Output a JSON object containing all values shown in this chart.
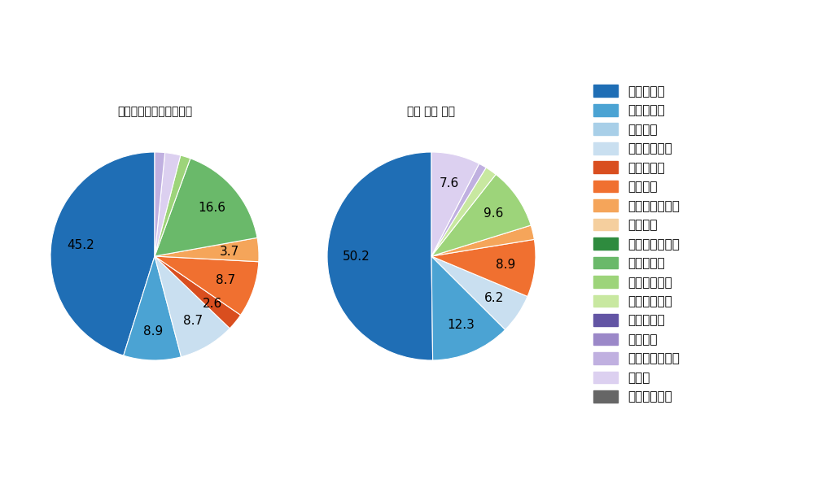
{
  "left_title": "パ・リーグ全プレイヤー",
  "right_title": "角中 勝也 選手",
  "legend_labels": [
    "ストレート",
    "ツーシーム",
    "シュート",
    "カットボール",
    "スプリット",
    "フォーク",
    "チェンジアップ",
    "シンカー",
    "高速スライダー",
    "スライダー",
    "縦スライダー",
    "パワーカーブ",
    "スクリュー",
    "ナックル",
    "ナックルカーブ",
    "カーブ",
    "スローカーブ"
  ],
  "legend_colors": [
    "#1f6eb5",
    "#4ba3d3",
    "#a8cfe8",
    "#c9dff0",
    "#d94e1f",
    "#f07030",
    "#f5a55a",
    "#f5cf9e",
    "#2e8b3e",
    "#6ab96a",
    "#9dd47a",
    "#c8e8a0",
    "#6355a4",
    "#9b88c8",
    "#c0b0e0",
    "#dcd0f0",
    "#666666"
  ],
  "left_slices": [
    {
      "label": "ストレート",
      "value": 43.0,
      "color": "#1f6eb5"
    },
    {
      "label": "ツーシーム",
      "value": 8.5,
      "color": "#4ba3d3"
    },
    {
      "label": "カットボール",
      "value": 8.3,
      "color": "#c9dff0"
    },
    {
      "label": "スプリット",
      "value": 2.5,
      "color": "#d94e1f"
    },
    {
      "label": "フォーク",
      "value": 8.3,
      "color": "#f07030"
    },
    {
      "label": "チェンジアップ",
      "value": 3.5,
      "color": "#f5a55a"
    },
    {
      "label": "スライダー",
      "value": 15.8,
      "color": "#6ab96a"
    },
    {
      "label": "縦スライダー",
      "value": 1.5,
      "color": "#9dd47a"
    },
    {
      "label": "カーブ",
      "value": 2.3,
      "color": "#dcd0f0"
    },
    {
      "label": "ナックルカーブ",
      "value": 1.5,
      "color": "#c0b0e0"
    }
  ],
  "right_slices": [
    {
      "label": "ストレート",
      "value": 49.7,
      "color": "#1f6eb5"
    },
    {
      "label": "ツーシーム",
      "value": 12.2,
      "color": "#4ba3d3"
    },
    {
      "label": "カットボール",
      "value": 6.1,
      "color": "#c9dff0"
    },
    {
      "label": "フォーク",
      "value": 8.8,
      "color": "#f07030"
    },
    {
      "label": "チェンジアップ",
      "value": 2.2,
      "color": "#f5a55a"
    },
    {
      "label": "縦スライダー",
      "value": 9.5,
      "color": "#9dd47a"
    },
    {
      "label": "パワーカーブ",
      "value": 1.8,
      "color": "#c8e8a0"
    },
    {
      "label": "ナックルカーブ",
      "value": 1.2,
      "color": "#c0b0e0"
    },
    {
      "label": "カーブ",
      "value": 7.5,
      "color": "#dcd0f0"
    }
  ],
  "background_color": "#ffffff",
  "label_fontsize": 11,
  "title_fontsize": 13,
  "legend_fontsize": 11
}
